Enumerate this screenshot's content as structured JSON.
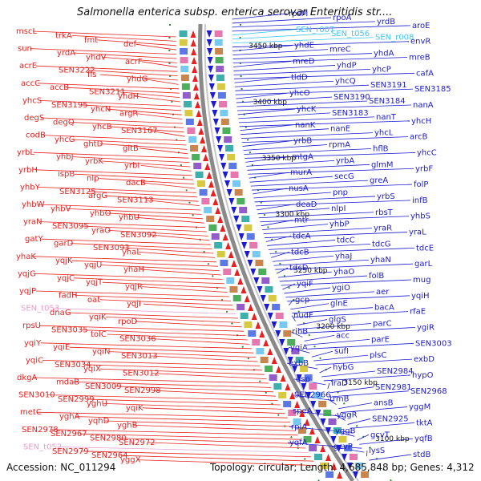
{
  "title": "Salmonella enterica subsp. enterica serovar Enteritidis str....",
  "footer": {
    "accession": "Accession: NC_011294",
    "summary": "Topology: circular; Length: 4,685,848 bp; Genes: 4,312"
  },
  "colors": {
    "left_strand": "#e8201e",
    "right_strand": "#1b1bd0",
    "rna": "#3fc7f0",
    "pseudo": "#e7a0cf",
    "backbone": "#808080",
    "tick": "#2e8b2e"
  },
  "ticks": [
    "3450 kbp",
    "3400 kbp",
    "3350 kbp",
    "3300 kbp",
    "3250 kbp",
    "3200 kbp",
    "3150 kbp",
    "3100 kbp"
  ],
  "left_labels": [
    "mscL",
    "trkA",
    "fmt",
    "def",
    "sun",
    "yrdA",
    "yhdV",
    "acrF",
    "acrE",
    "SEN3222",
    "fis",
    "yhdG",
    "accC",
    "accB",
    "SEN3211",
    "yhdH",
    "yhcS",
    "SEN3195",
    "yhcN",
    "argR",
    "degS",
    "degQ",
    "yhcB",
    "SEN3167",
    "codB",
    "yhcG",
    "ghtD",
    "gltB",
    "yrbL",
    "yhbJ",
    "yrbK",
    "yrbI",
    "yrbH",
    "ispB",
    "nlp",
    "dacB",
    "yhbY",
    "SEN3125",
    "argG",
    "SEN3113",
    "yhbW",
    "yhbV",
    "yhbO",
    "yhbU",
    "yraN",
    "SEN3095",
    "yraO",
    "SEN3092",
    "gatY",
    "garD",
    "SEN3093",
    "yhaL",
    "yhaK",
    "yqjK",
    "yqjU",
    "yhaH",
    "yqjG",
    "yqjC",
    "yqjT",
    "yqjR",
    "yqjP",
    "fadH",
    "oat",
    "yqjI",
    "SEN_t053",
    "dnaG",
    "yqiK",
    "rpoD",
    "rpsU",
    "SEN3035",
    "tolC",
    "SEN3036",
    "yqiY",
    "yqiE",
    "yqiN",
    "SEN3013",
    "yqiC",
    "SEN3034",
    "yqiX",
    "SEN3012",
    "dkgA",
    "mdaB",
    "SEN3009",
    "SEN2998",
    "SEN3010",
    "SEN2999",
    "yghU",
    "yqiK",
    "metC",
    "yghA",
    "yqhD",
    "yghB",
    "SEN2978",
    "SEN2967",
    "SEN2980",
    "SEN2972",
    "SEN_t052",
    "SEN2979",
    "SEN2964",
    "yggX"
  ],
  "right_labels": [
    "rpsM",
    "rpoA",
    "yrdB",
    "aroE",
    "SEN_r007",
    "SEN_t056",
    "SEN_r008",
    "envR",
    "yhdE",
    "mreC",
    "yhdA",
    "mreB",
    "mreD",
    "yhdP",
    "yhcP",
    "cafA",
    "tldD",
    "yhcQ",
    "SEN3191",
    "SEN3185",
    "yhcO",
    "SEN3190",
    "SEN3184",
    "nanA",
    "yhcK",
    "SEN3183",
    "nanT",
    "yhcH",
    "nanK",
    "nanE",
    "yhcL",
    "arcB",
    "yrbB",
    "rpmA",
    "hflB",
    "yhcC",
    "mtgA",
    "yrbA",
    "glmM",
    "yrbF",
    "murA",
    "secG",
    "greA",
    "folP",
    "nusA",
    "pnp",
    "yrbS",
    "infB",
    "deaD",
    "nlpI",
    "rbsT",
    "yhbS",
    "mtr",
    "yhbP",
    "yraR",
    "yraL",
    "tdcA",
    "tdcC",
    "tdcG",
    "tdcE",
    "tdcB",
    "yhaJ",
    "yhaN",
    "garL",
    "tdcD",
    "yhaO",
    "folB",
    "mug",
    "yqiF",
    "ygiO",
    "aer",
    "yqiH",
    "gcp",
    "glnE",
    "bacA",
    "rfaE",
    "nudF",
    "glgS",
    "parC",
    "ygiR",
    "ribB",
    "acc",
    "parE",
    "SEN3003",
    "yqiA",
    "sufI",
    "plsC",
    "exbD",
    "exbB",
    "hybG",
    "SEN2984",
    "hypO",
    "qsp",
    "iraD",
    "SEN2981",
    "SEN2968",
    "SEN2966",
    "trmB",
    "ansB",
    "yggM",
    "speA",
    "yggR",
    "SEN2925",
    "tktA",
    "rpiA",
    "yggB",
    "gcvT",
    "yqfB",
    "yqfA",
    "gcvP",
    "lysS",
    "stdB"
  ]
}
